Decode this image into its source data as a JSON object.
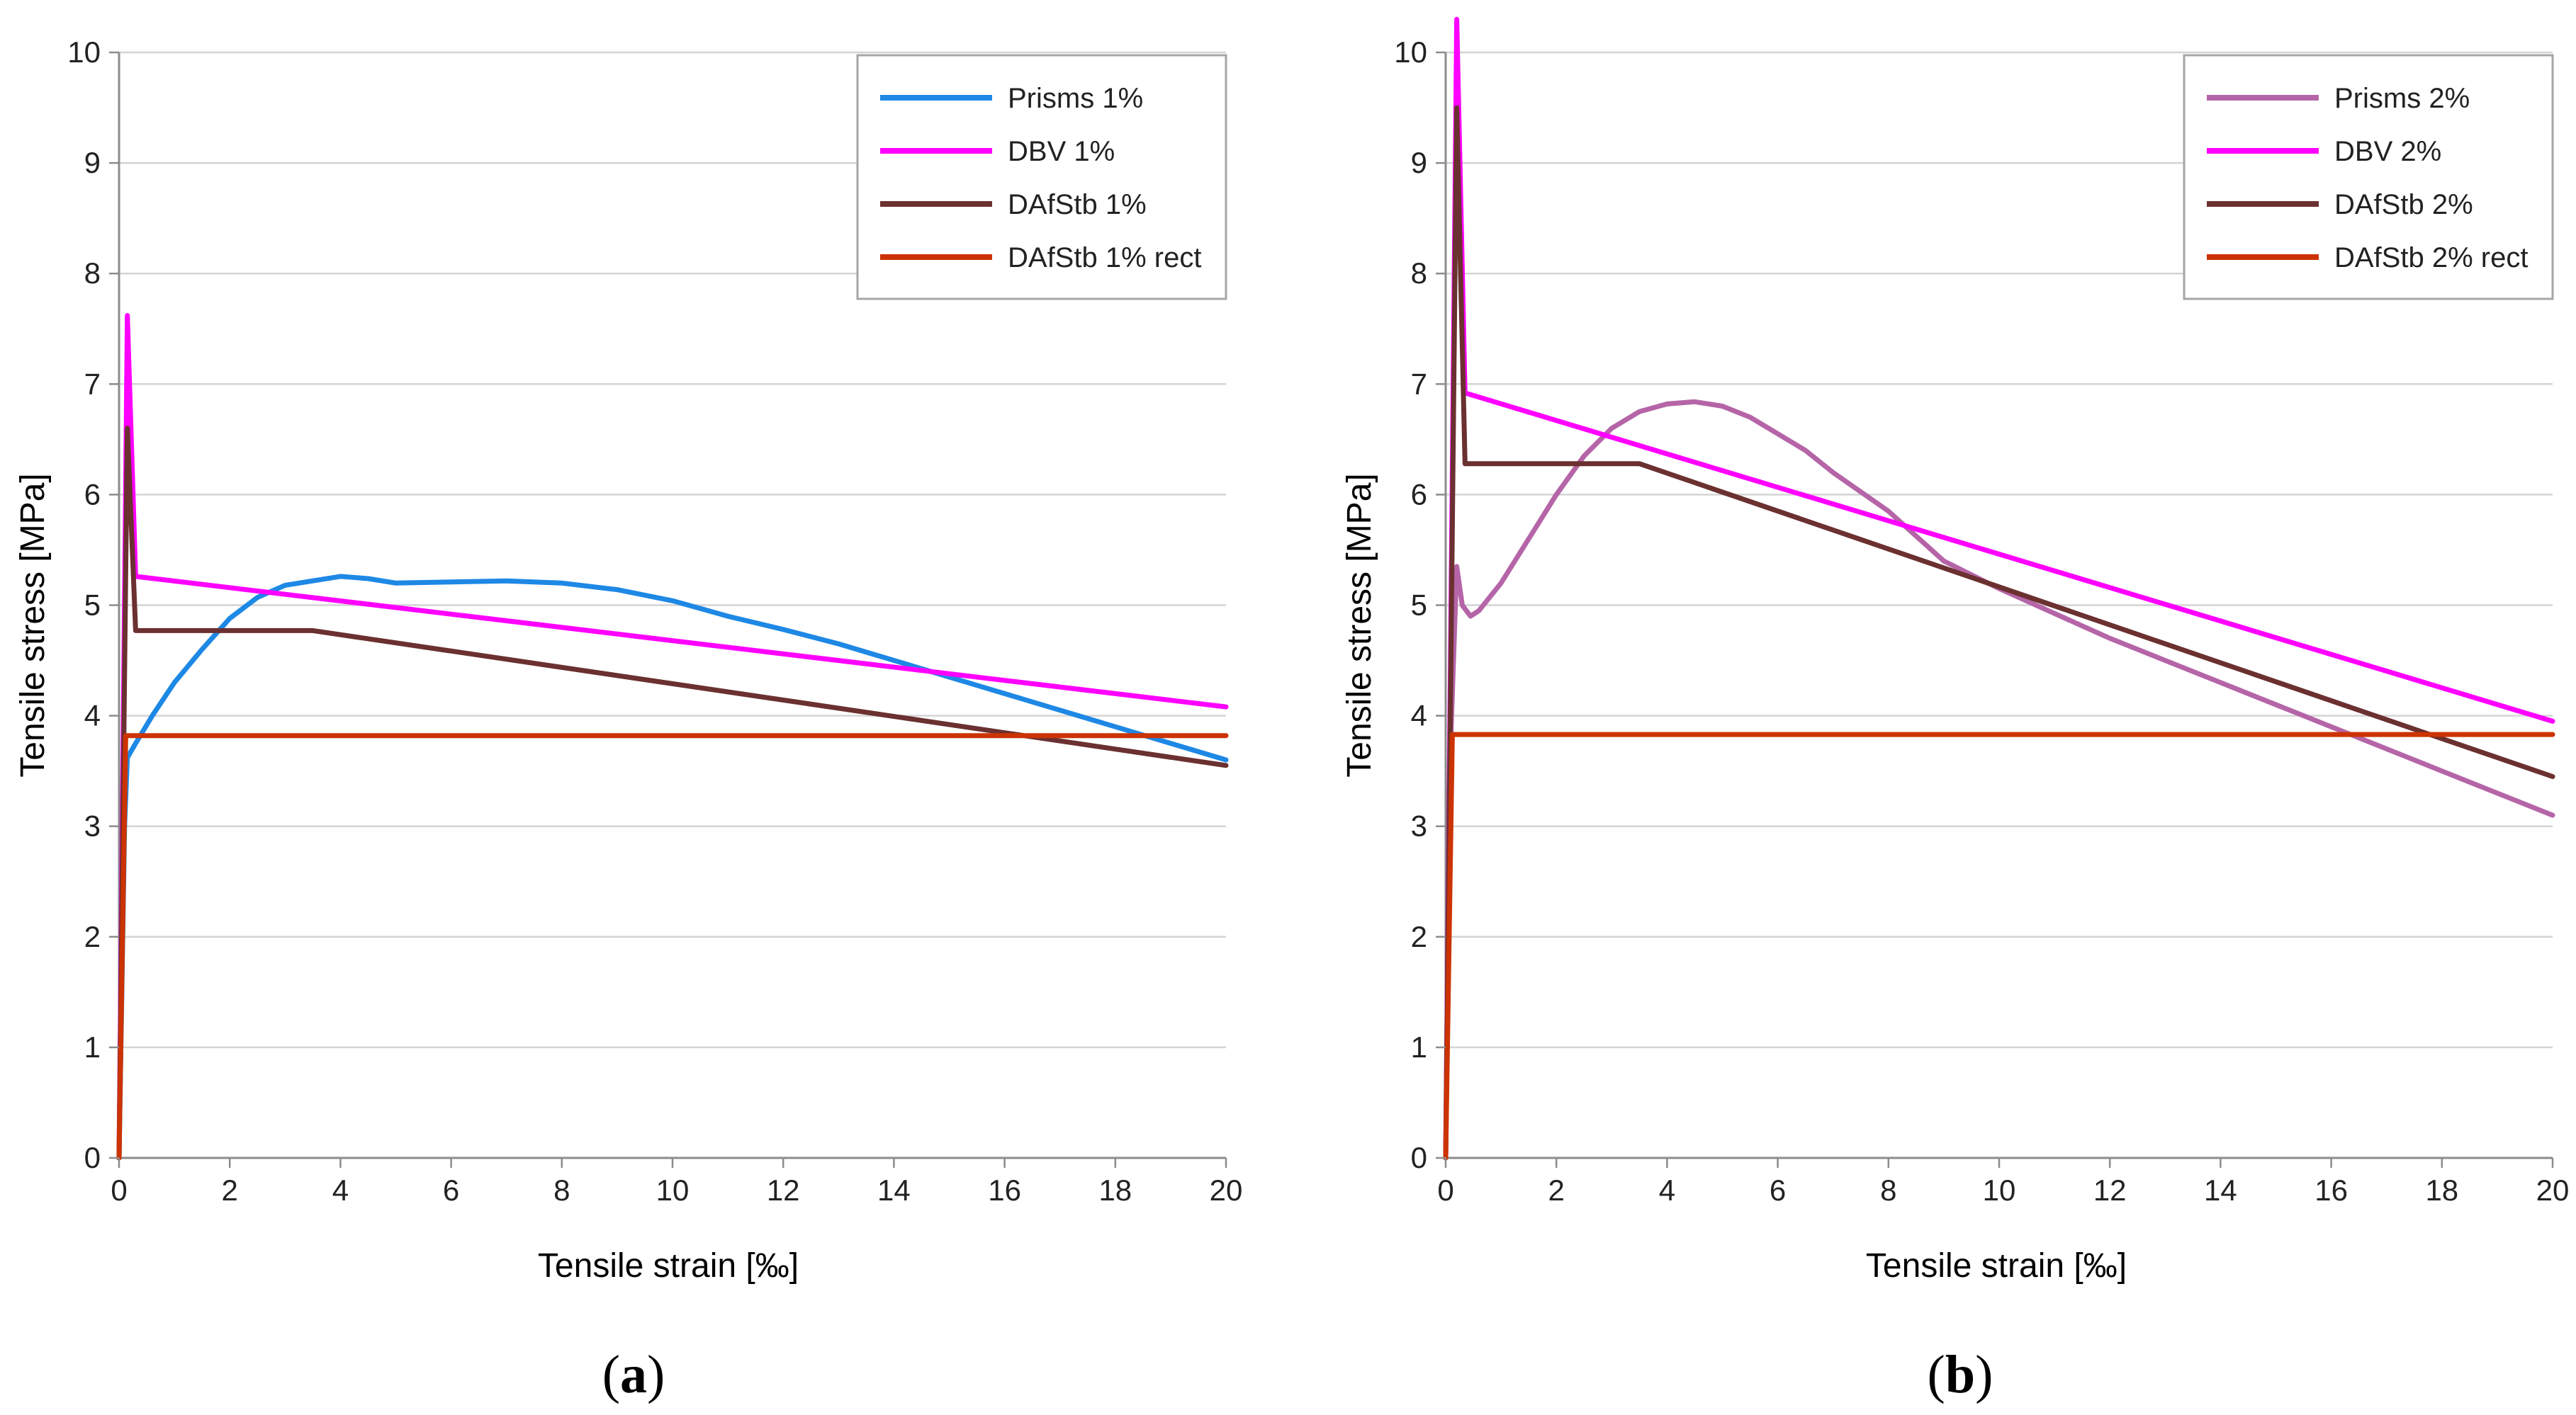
{
  "chart_data": [
    {
      "type": "line",
      "panel_label": "a",
      "xlabel": "Tensile strain [‰]",
      "ylabel": "Tensile stress [MPa]",
      "xlim": [
        0,
        20
      ],
      "ylim": [
        0,
        10
      ],
      "x_ticks": [
        "0",
        "2",
        "4",
        "6",
        "8",
        "10",
        "12",
        "14",
        "16",
        "18",
        "20"
      ],
      "y_ticks": [
        "0",
        "1",
        "2",
        "3",
        "4",
        "5",
        "6",
        "7",
        "8",
        "9",
        "10"
      ],
      "grid": true,
      "legend_position": "top-right",
      "series": [
        {
          "name": "Prisms 1%",
          "color": "#1e88e5",
          "x": [
            0,
            0.1,
            0.15,
            0.3,
            0.6,
            1.0,
            1.5,
            2.0,
            2.5,
            3.0,
            3.5,
            4.0,
            4.5,
            5.0,
            6.0,
            7.0,
            8.0,
            9.0,
            10.0,
            11.0,
            12.0,
            13.0,
            14.0,
            15.0,
            16.0,
            17.0,
            18.0,
            19.0,
            20.0
          ],
          "y": [
            0,
            3.0,
            3.62,
            3.75,
            4.0,
            4.3,
            4.6,
            4.88,
            5.07,
            5.18,
            5.22,
            5.26,
            5.24,
            5.2,
            5.21,
            5.22,
            5.2,
            5.14,
            5.04,
            4.9,
            4.78,
            4.65,
            4.5,
            4.35,
            4.2,
            4.05,
            3.9,
            3.75,
            3.6
          ]
        },
        {
          "name": "DBV 1%",
          "color": "#ff00ff",
          "x": [
            0,
            0.15,
            0.3,
            20
          ],
          "y": [
            0,
            7.62,
            5.26,
            4.08
          ]
        },
        {
          "name": "DAfStb 1%",
          "color": "#6b3030",
          "x": [
            0,
            0.15,
            0.3,
            3.5,
            20
          ],
          "y": [
            0,
            6.6,
            4.77,
            4.77,
            3.55
          ]
        },
        {
          "name": "DAfStb 1% rect",
          "color": "#cc3300",
          "x": [
            0,
            0.12,
            20
          ],
          "y": [
            0,
            3.82,
            3.82
          ]
        }
      ]
    },
    {
      "type": "line",
      "panel_label": "b",
      "xlabel": "Tensile strain [‰]",
      "ylabel": "Tensile stress [MPa]",
      "xlim": [
        0,
        20
      ],
      "ylim": [
        0,
        10
      ],
      "x_ticks": [
        "0",
        "2",
        "4",
        "6",
        "8",
        "10",
        "12",
        "14",
        "16",
        "18",
        "20"
      ],
      "y_ticks": [
        "0",
        "1",
        "2",
        "3",
        "4",
        "5",
        "6",
        "7",
        "8",
        "9",
        "10"
      ],
      "grid": true,
      "legend_position": "top-right",
      "series": [
        {
          "name": "Prisms 2%",
          "color": "#b565a7",
          "x": [
            0,
            0.1,
            0.2,
            0.3,
            0.45,
            0.6,
            1.0,
            1.5,
            2.0,
            2.5,
            3.0,
            3.5,
            4.0,
            4.5,
            5.0,
            5.5,
            6.0,
            6.5,
            7.0,
            8.0,
            9.0,
            10.0,
            12.0,
            14.0,
            16.0,
            18.0,
            20.0
          ],
          "y": [
            0,
            3.9,
            5.35,
            5.0,
            4.9,
            4.95,
            5.2,
            5.6,
            6.0,
            6.35,
            6.6,
            6.75,
            6.82,
            6.84,
            6.8,
            6.7,
            6.55,
            6.4,
            6.2,
            5.85,
            5.4,
            5.15,
            4.7,
            4.3,
            3.9,
            3.5,
            3.1
          ]
        },
        {
          "name": "DBV 2%",
          "color": "#ff00ff",
          "x": [
            0,
            0.2,
            0.35,
            20
          ],
          "y": [
            0,
            10.3,
            6.92,
            3.95
          ]
        },
        {
          "name": "DAfStb 2%",
          "color": "#6b3030",
          "x": [
            0,
            0.2,
            0.35,
            3.5,
            20
          ],
          "y": [
            0,
            9.5,
            6.28,
            6.28,
            3.45
          ]
        },
        {
          "name": "DAfStb 2% rect",
          "color": "#cc3300",
          "x": [
            0,
            0.12,
            20
          ],
          "y": [
            0,
            3.83,
            3.83
          ]
        }
      ]
    }
  ]
}
